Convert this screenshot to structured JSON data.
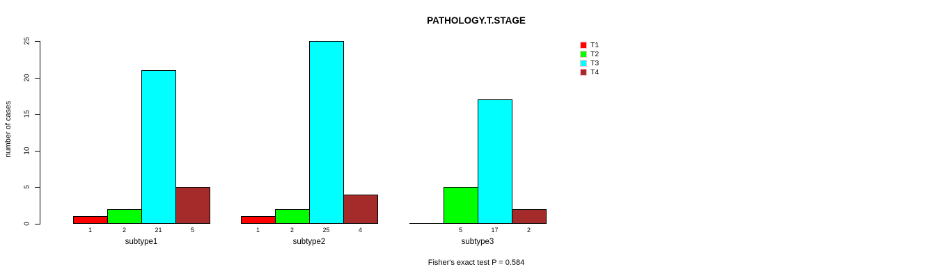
{
  "chart_data": {
    "type": "bar",
    "title": "PATHOLOGY.T.STAGE",
    "ylabel": "number of cases",
    "xlabel": "",
    "categories": [
      "subtype1",
      "subtype2",
      "subtype3"
    ],
    "series": [
      {
        "name": "T1",
        "color": "#FF0000",
        "values": [
          1,
          1,
          0
        ]
      },
      {
        "name": "T2",
        "color": "#00FF00",
        "values": [
          2,
          2,
          5
        ]
      },
      {
        "name": "T3",
        "color": "#00FFFF",
        "values": [
          21,
          25,
          17
        ]
      },
      {
        "name": "T4",
        "color": "#A52A2A",
        "values": [
          5,
          4,
          2
        ]
      }
    ],
    "bar_labels": [
      [
        "1",
        "2",
        "21",
        "5"
      ],
      [
        "1",
        "2",
        "25",
        "4"
      ],
      [
        "",
        "5",
        "17",
        "2"
      ]
    ],
    "ylim": [
      0,
      25
    ],
    "yticks": [
      0,
      5,
      10,
      15,
      20,
      25
    ],
    "legend_position": "right",
    "grid": false,
    "annotation": "Fisher's exact test P = 0.584"
  }
}
